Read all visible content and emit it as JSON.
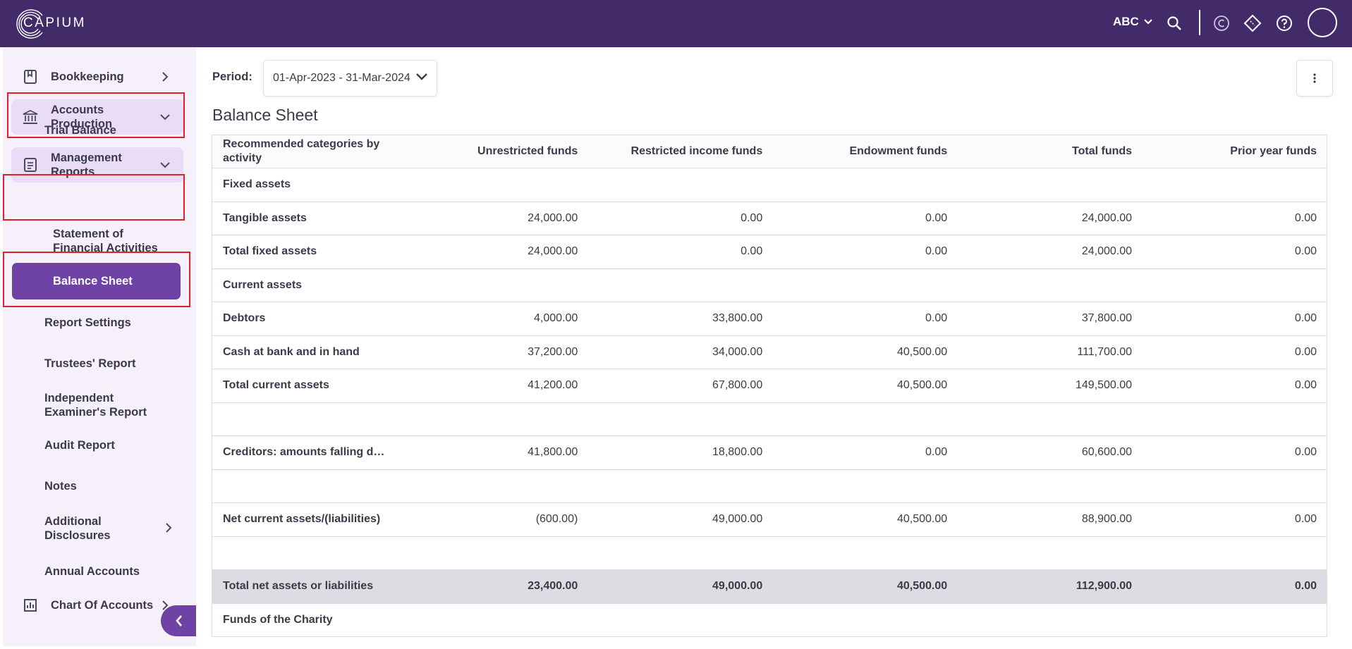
{
  "topbar": {
    "logo_text": "CAPIUM",
    "org": "ABC",
    "icons": [
      "search-icon",
      "capium-coin-icon",
      "ticket-icon",
      "help-icon",
      "user-avatar"
    ]
  },
  "sidebar": {
    "bookkeeping": "Bookkeeping",
    "accounts_production": "Accounts Production",
    "trial_balance": "Trial Balance",
    "management_reports": "Management Reports",
    "statement_of_financial_activities": "Statement of Financial Activities",
    "balance_sheet": "Balance Sheet",
    "report_settings": "Report Settings",
    "trustees_report": "Trustees' Report",
    "independent_examiners_report": "Independent Examiner's Report",
    "audit_report": "Audit Report",
    "notes": "Notes",
    "additional_disclosures": "Additional Disclosures",
    "annual_accounts": "Annual Accounts",
    "chart_of_accounts": "Chart Of Accounts"
  },
  "main": {
    "period_label": "Period:",
    "period_value": "01-Apr-2023 - 31-Mar-2024",
    "title": "Balance Sheet",
    "table": {
      "headers": [
        "Recommended categories by activity",
        "Unrestricted funds",
        "Restricted income funds",
        "Endowment funds",
        "Total funds",
        "Prior year funds"
      ],
      "rows": [
        [
          "Fixed assets",
          "",
          "",
          "",
          "",
          ""
        ],
        [
          "Tangible assets",
          "24,000.00",
          "0.00",
          "0.00",
          "24,000.00",
          "0.00"
        ],
        [
          "Total fixed assets",
          "24,000.00",
          "0.00",
          "0.00",
          "24,000.00",
          "0.00"
        ],
        [
          "Current assets",
          "",
          "",
          "",
          "",
          ""
        ],
        [
          "Debtors",
          "4,000.00",
          "33,800.00",
          "0.00",
          "37,800.00",
          "0.00"
        ],
        [
          "Cash at bank and in hand",
          "37,200.00",
          "34,000.00",
          "40,500.00",
          "111,700.00",
          "0.00"
        ],
        [
          "Total current assets",
          "41,200.00",
          "67,800.00",
          "40,500.00",
          "149,500.00",
          "0.00"
        ],
        [
          "",
          "",
          "",
          "",
          "",
          ""
        ],
        [
          "Creditors: amounts falling d…",
          "41,800.00",
          "18,800.00",
          "0.00",
          "60,600.00",
          "0.00"
        ],
        [
          "",
          "",
          "",
          "",
          "",
          ""
        ],
        [
          "Net current assets/(liabilities)",
          "(600.00)",
          "49,000.00",
          "40,500.00",
          "88,900.00",
          "0.00"
        ],
        [
          "",
          "",
          "",
          "",
          "",
          ""
        ],
        [
          "Total net assets or liabilities",
          "23,400.00",
          "49,000.00",
          "40,500.00",
          "112,900.00",
          "0.00"
        ],
        [
          "Funds of the Charity",
          "",
          "",
          "",
          "",
          ""
        ]
      ],
      "total_row_index": 12
    }
  }
}
